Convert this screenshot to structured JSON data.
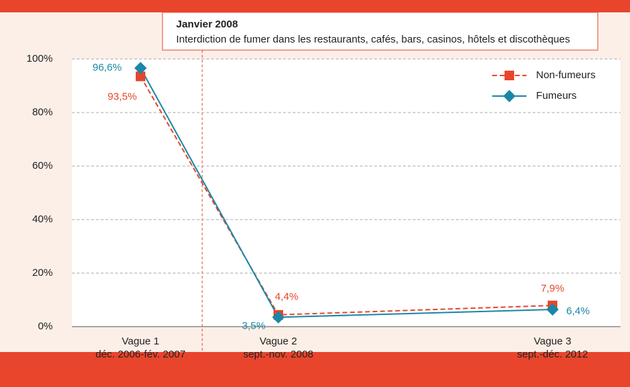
{
  "chart_data": {
    "type": "line",
    "annotation": {
      "title": "Janvier 2008",
      "text": "Interdiction de fumer dans les restaurants, cafés, bars, casinos, hôtels et discothèques"
    },
    "categories": [
      [
        "Vague 1",
        "déc. 2006-fév. 2007"
      ],
      [
        "Vague 2",
        "sept.-nov. 2008"
      ],
      [
        "Vague 3",
        "sept.-déc. 2012"
      ]
    ],
    "series": [
      {
        "name": "Non-fumeurs",
        "color": "#e8452c",
        "marker": "square",
        "dashed": true,
        "values": [
          93.5,
          4.4,
          7.9
        ],
        "value_labels": [
          "93,5%",
          "4,4%",
          "7,9%"
        ]
      },
      {
        "name": "Fumeurs",
        "color": "#1a87a5",
        "marker": "diamond",
        "dashed": false,
        "values": [
          96.6,
          3.5,
          6.4
        ],
        "value_labels": [
          "96,6%",
          "3,5%",
          "6,4%"
        ]
      }
    ],
    "ylim": [
      0,
      100
    ],
    "yticks": [
      {
        "value": 0,
        "label": "0%"
      },
      {
        "value": 20,
        "label": "20%"
      },
      {
        "value": 40,
        "label": "40%"
      },
      {
        "value": 60,
        "label": "60%"
      },
      {
        "value": 80,
        "label": "80%"
      },
      {
        "value": 100,
        "label": "100%"
      }
    ],
    "grid": true,
    "legend": "upper right"
  }
}
